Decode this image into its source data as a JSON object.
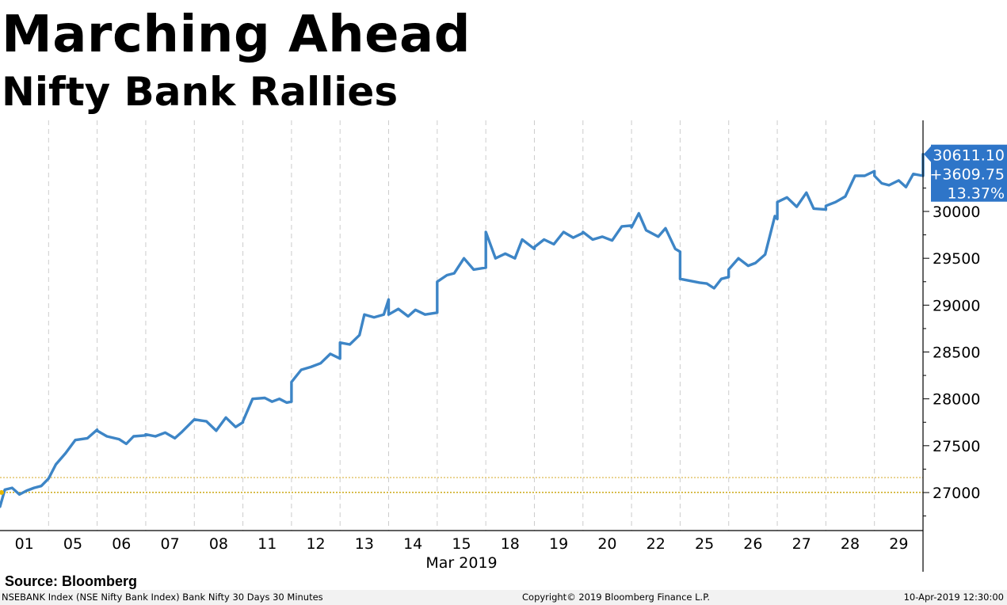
{
  "header": {
    "title": "Marching Ahead",
    "subtitle": "Nifty Bank Rallies"
  },
  "source": "Source: Bloomberg",
  "footer": {
    "left": "NSEBANK Index (NSE Nifty Bank Index) Bank Nifty 30 Days 30 Minutes",
    "middle": "Copyright© 2019 Bloomberg Finance L.P.",
    "right": "10-Apr-2019 12:30:00"
  },
  "chart_data": {
    "type": "line",
    "title": "Nifty Bank Rallies",
    "xlabel": "Mar 2019",
    "ylabel": "",
    "ylim": [
      26600,
      31000
    ],
    "yticks": [
      27000,
      27500,
      28000,
      28500,
      29000,
      29500,
      30000
    ],
    "x_tick_labels": [
      "01",
      "05",
      "06",
      "07",
      "08",
      "11",
      "12",
      "13",
      "14",
      "15",
      "18",
      "19",
      "20",
      "22",
      "25",
      "26",
      "27",
      "28",
      "29"
    ],
    "grid": "vertical dashed at session boundaries",
    "axis_side": "right",
    "series": [
      {
        "color": "#3d85c6",
        "points": [
          [
            0.0,
            26850
          ],
          [
            0.1,
            27030
          ],
          [
            0.25,
            27050
          ],
          [
            0.4,
            26980
          ],
          [
            0.55,
            27020
          ],
          [
            0.7,
            27050
          ],
          [
            0.85,
            27070
          ],
          [
            1.0,
            27150
          ],
          [
            1.0,
            27150
          ],
          [
            1.15,
            27300
          ],
          [
            1.35,
            27420
          ],
          [
            1.55,
            27560
          ],
          [
            1.8,
            27580
          ],
          [
            2.0,
            27670
          ],
          [
            2.0,
            27660
          ],
          [
            2.2,
            27600
          ],
          [
            2.45,
            27570
          ],
          [
            2.6,
            27520
          ],
          [
            2.75,
            27600
          ],
          [
            3.0,
            27610
          ],
          [
            3.0,
            27620
          ],
          [
            3.2,
            27600
          ],
          [
            3.4,
            27640
          ],
          [
            3.6,
            27580
          ],
          [
            3.75,
            27650
          ],
          [
            4.0,
            27780
          ],
          [
            4.0,
            27780
          ],
          [
            4.25,
            27760
          ],
          [
            4.45,
            27660
          ],
          [
            4.65,
            27800
          ],
          [
            4.85,
            27700
          ],
          [
            5.0,
            27750
          ],
          [
            5.0,
            27760
          ],
          [
            5.2,
            28000
          ],
          [
            5.45,
            28010
          ],
          [
            5.6,
            27970
          ],
          [
            5.75,
            28000
          ],
          [
            5.9,
            27960
          ],
          [
            6.0,
            27970
          ],
          [
            6.0,
            28180
          ],
          [
            6.2,
            28310
          ],
          [
            6.4,
            28340
          ],
          [
            6.6,
            28380
          ],
          [
            6.8,
            28480
          ],
          [
            7.0,
            28430
          ],
          [
            7.0,
            28600
          ],
          [
            7.2,
            28580
          ],
          [
            7.4,
            28680
          ],
          [
            7.5,
            28900
          ],
          [
            7.7,
            28870
          ],
          [
            7.9,
            28900
          ],
          [
            8.0,
            29060
          ],
          [
            8.0,
            28900
          ],
          [
            8.2,
            28960
          ],
          [
            8.4,
            28880
          ],
          [
            8.55,
            28950
          ],
          [
            8.75,
            28900
          ],
          [
            9.0,
            28920
          ],
          [
            9.0,
            29250
          ],
          [
            9.2,
            29320
          ],
          [
            9.35,
            29340
          ],
          [
            9.55,
            29500
          ],
          [
            9.75,
            29380
          ],
          [
            10.0,
            29400
          ],
          [
            10.0,
            29780
          ],
          [
            10.2,
            29500
          ],
          [
            10.4,
            29550
          ],
          [
            10.6,
            29500
          ],
          [
            10.75,
            29700
          ],
          [
            11.0,
            29600
          ],
          [
            11.0,
            29620
          ],
          [
            11.2,
            29700
          ],
          [
            11.4,
            29650
          ],
          [
            11.6,
            29780
          ],
          [
            11.8,
            29720
          ],
          [
            12.0,
            29770
          ],
          [
            12.0,
            29780
          ],
          [
            12.2,
            29700
          ],
          [
            12.4,
            29730
          ],
          [
            12.6,
            29690
          ],
          [
            12.8,
            29840
          ],
          [
            13.0,
            29850
          ],
          [
            13.0,
            29830
          ],
          [
            13.15,
            29980
          ],
          [
            13.3,
            29800
          ],
          [
            13.55,
            29730
          ],
          [
            13.7,
            29820
          ],
          [
            13.9,
            29600
          ],
          [
            14.0,
            29570
          ],
          [
            14.0,
            29280
          ],
          [
            14.2,
            29260
          ],
          [
            14.4,
            29240
          ],
          [
            14.55,
            29230
          ],
          [
            14.7,
            29180
          ],
          [
            14.85,
            29280
          ],
          [
            15.0,
            29300
          ],
          [
            15.0,
            29380
          ],
          [
            15.2,
            29500
          ],
          [
            15.4,
            29420
          ],
          [
            15.55,
            29450
          ],
          [
            15.75,
            29540
          ],
          [
            15.95,
            29950
          ],
          [
            16.0,
            29920
          ],
          [
            16.0,
            30100
          ],
          [
            16.2,
            30150
          ],
          [
            16.4,
            30050
          ],
          [
            16.6,
            30200
          ],
          [
            16.75,
            30030
          ],
          [
            17.0,
            30020
          ],
          [
            17.0,
            30060
          ],
          [
            17.2,
            30100
          ],
          [
            17.4,
            30160
          ],
          [
            17.6,
            30380
          ],
          [
            17.8,
            30380
          ],
          [
            18.0,
            30430
          ],
          [
            18.0,
            30380
          ],
          [
            18.15,
            30300
          ],
          [
            18.3,
            30280
          ],
          [
            18.5,
            30330
          ],
          [
            18.65,
            30260
          ],
          [
            18.8,
            30400
          ],
          [
            19.0,
            30380
          ],
          [
            19.0,
            30611
          ]
        ]
      }
    ],
    "reference_lines": [
      {
        "value": 27001.35,
        "color": "#c8a000"
      },
      {
        "value": 27160,
        "color": "#e0c060"
      }
    ],
    "last_value_tag": {
      "value": "30611.10",
      "change": "+3609.75",
      "percent": "13.37%",
      "color": "#2e75c8"
    }
  }
}
